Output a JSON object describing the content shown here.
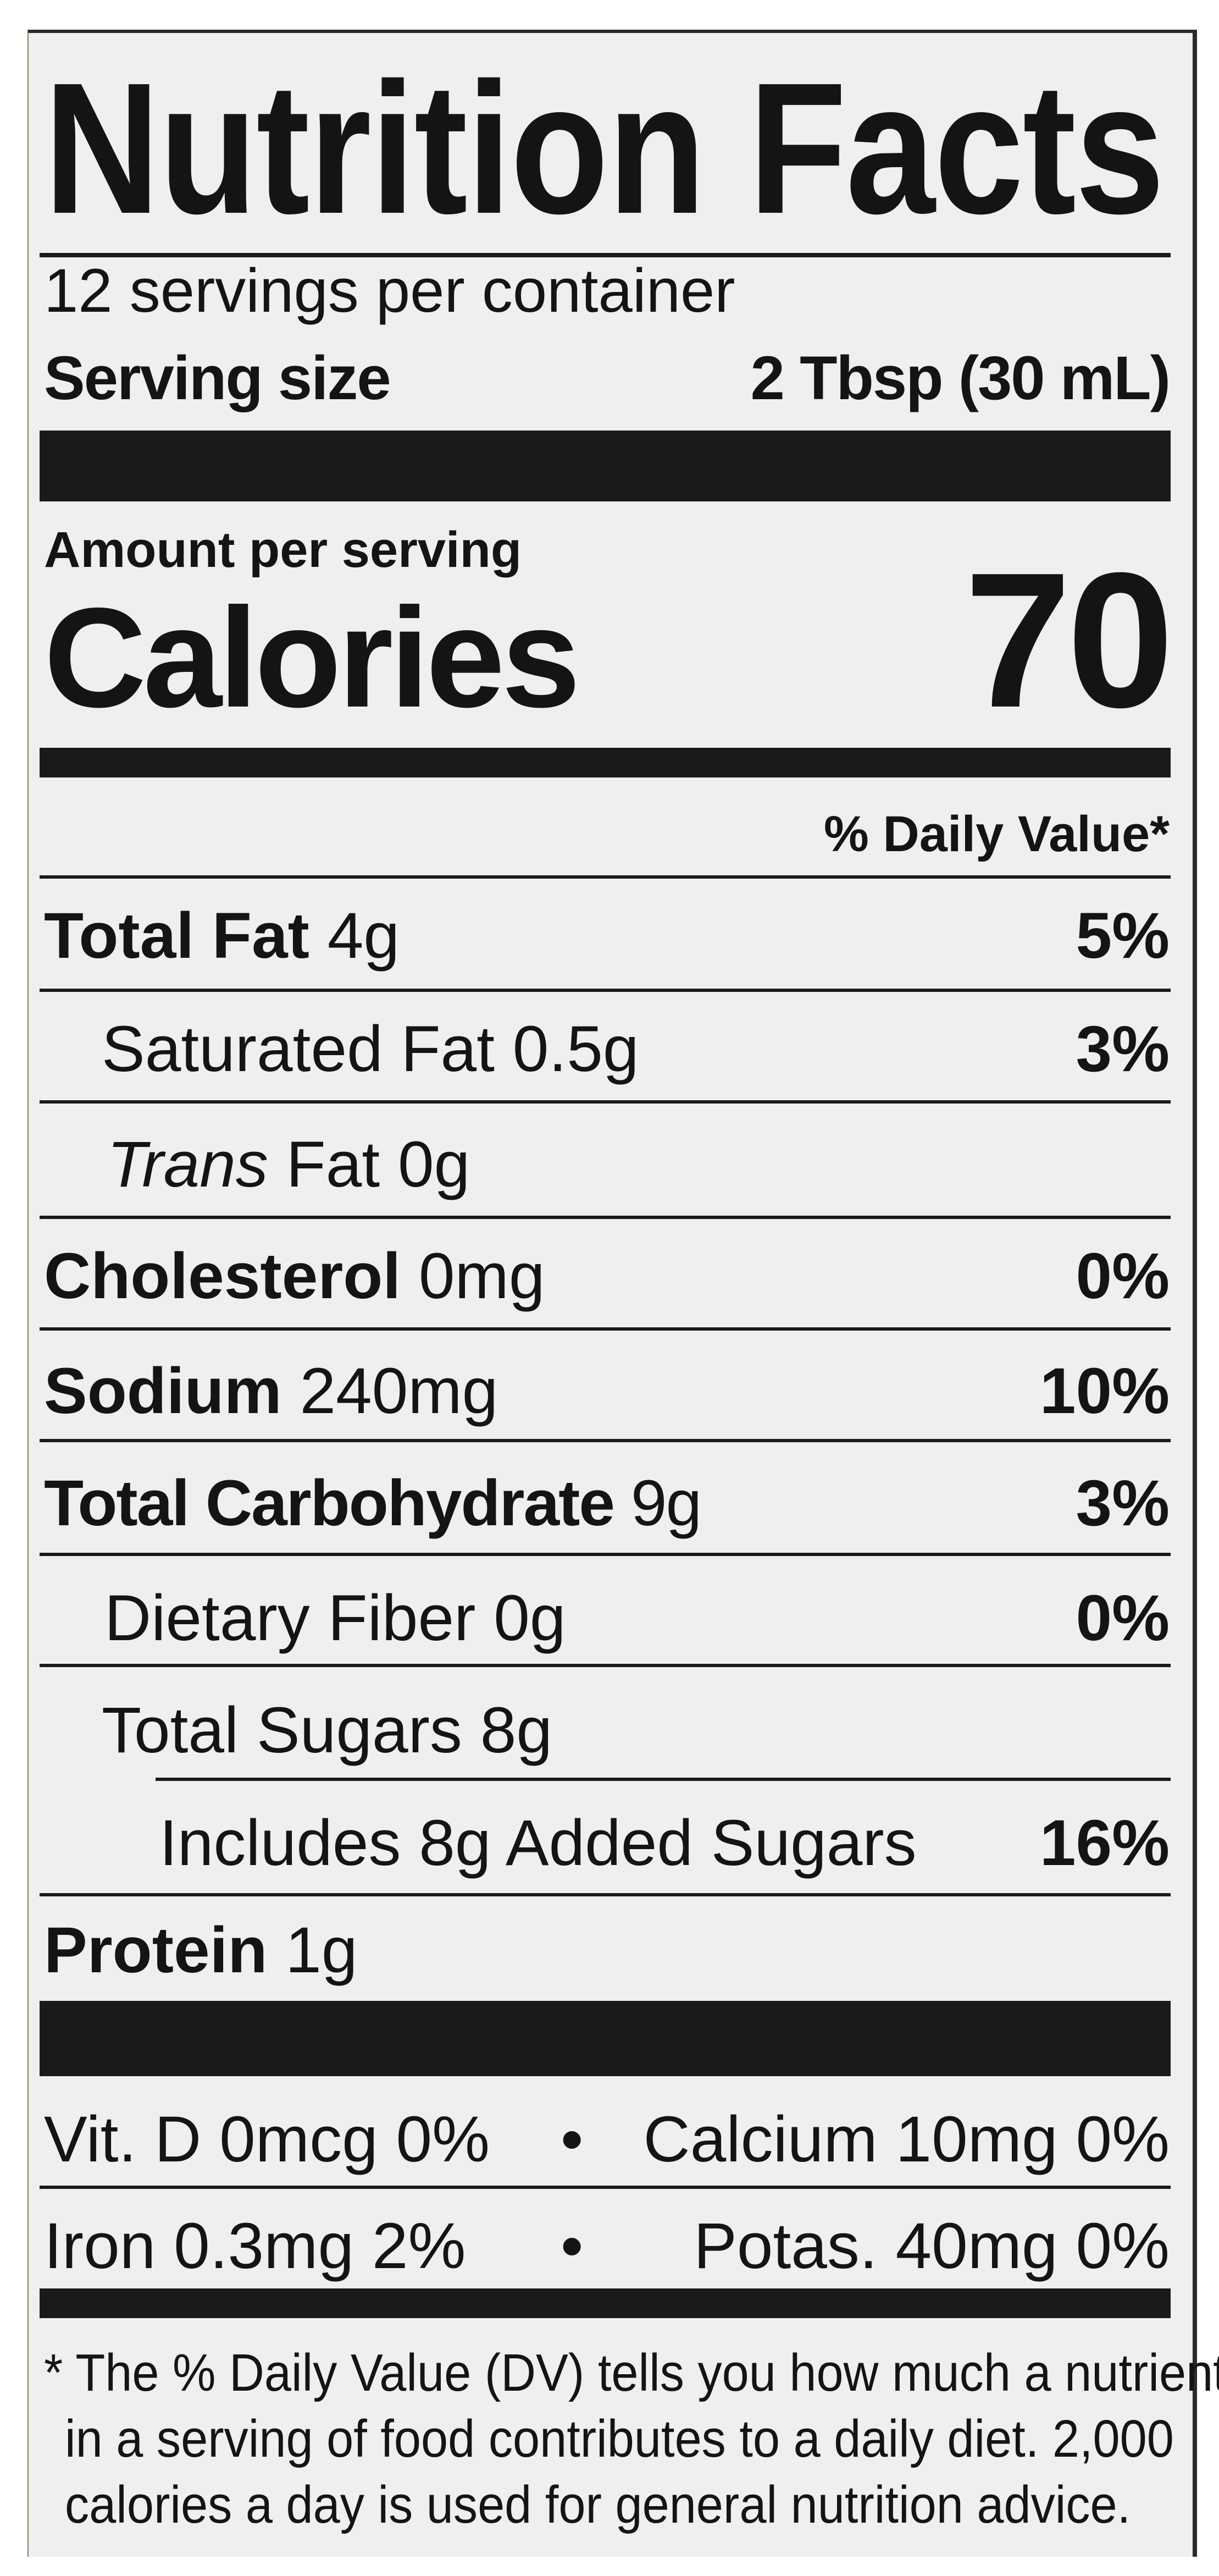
{
  "title": "Nutrition Facts",
  "servings_per_container": "12 servings per container",
  "serving_size": {
    "label": "Serving size",
    "value": "2 Tbsp (30 mL)"
  },
  "amount_per_serving": "Amount per serving",
  "calories": {
    "label": "Calories",
    "value": "70"
  },
  "daily_value_header": "% Daily Value*",
  "nutrients": [
    {
      "name": "Total Fat",
      "amount": "4g",
      "dv": "5%",
      "bold": true,
      "indent": 0
    },
    {
      "name": "Saturated Fat",
      "amount": "0.5g",
      "dv": "3%",
      "bold": false,
      "indent": 1
    },
    {
      "name_italic": "Trans",
      "name": "Fat",
      "amount": "0g",
      "dv": "",
      "bold": false,
      "indent": 1
    },
    {
      "name": "Cholesterol",
      "amount": "0mg",
      "dv": "0%",
      "bold": true,
      "indent": 0
    },
    {
      "name": "Sodium",
      "amount": "240mg",
      "dv": "10%",
      "bold": true,
      "indent": 0
    },
    {
      "name": "Total Carbohydrate",
      "amount": "9g",
      "dv": "3%",
      "bold": true,
      "indent": 0
    },
    {
      "name": "Dietary Fiber",
      "amount": "0g",
      "dv": "0%",
      "bold": false,
      "indent": 1
    },
    {
      "name": "Total Sugars",
      "amount": "8g",
      "dv": "",
      "bold": false,
      "indent": 1
    },
    {
      "name": "Includes 8g Added Sugars",
      "amount": "",
      "dv": "16%",
      "bold": false,
      "indent": 2
    },
    {
      "name": "Protein",
      "amount": "1g",
      "dv": "",
      "bold": true,
      "indent": 0
    }
  ],
  "vitamins": [
    {
      "left": "Vit. D 0mcg 0%",
      "right": "Calcium 10mg 0%"
    },
    {
      "left": "Iron 0.3mg 2%",
      "right": "Potas. 40mg 0%"
    }
  ],
  "bullet": "•",
  "footnote": [
    "* The % Daily Value (DV) tells you how much a nutrient",
    "in a serving of food contributes to a daily diet. 2,000",
    "calories a day is used for general nutrition advice."
  ],
  "colors": {
    "ink": "#141414",
    "label_bg": "#eef0ef"
  }
}
